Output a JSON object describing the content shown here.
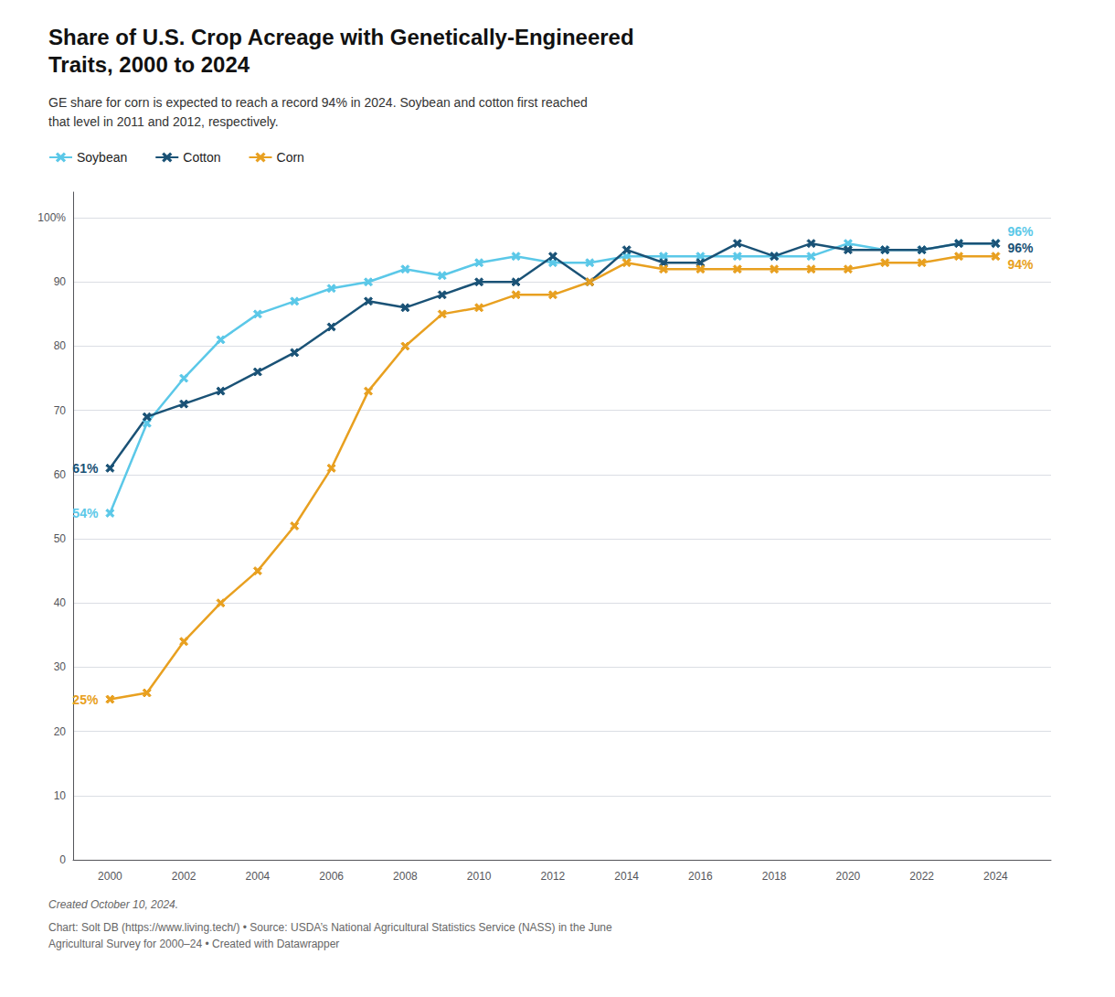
{
  "chart_data": {
    "type": "line",
    "title": "Share of U.S. Crop Acreage with Genetically-Engineered\nTraits, 2000 to 2024",
    "subtitle": "GE share for corn is expected to reach a record 94% in 2024. Soybean and cotton first reached\nthat level in 2011 and 2012, respectively.",
    "caption": "Created October 10, 2024.",
    "source": "Chart: Solt DB (https://www.living.tech/) • Source: USDA’s National Agricultural Statistics Service (NASS) in the June\nAgricultural Survey for 2000–24 • Created with Datawrapper",
    "x": [
      2000,
      2001,
      2002,
      2003,
      2004,
      2005,
      2006,
      2007,
      2008,
      2009,
      2010,
      2011,
      2012,
      2013,
      2014,
      2015,
      2016,
      2017,
      2018,
      2019,
      2020,
      2021,
      2022,
      2023,
      2024
    ],
    "series": [
      {
        "name": "Soybean",
        "color": "#5bc8e8",
        "values": [
          54,
          68,
          75,
          81,
          85,
          87,
          89,
          90,
          92,
          91,
          93,
          94,
          93,
          93,
          94,
          94,
          94,
          94,
          94,
          94,
          96,
          95,
          95,
          96,
          96
        ]
      },
      {
        "name": "Cotton",
        "color": "#1a5276",
        "values": [
          61,
          69,
          71,
          73,
          76,
          79,
          83,
          87,
          86,
          88,
          90,
          90,
          94,
          90,
          95,
          93,
          93,
          96,
          94,
          96,
          95,
          95,
          95,
          96,
          96
        ]
      },
      {
        "name": "Corn",
        "color": "#e8a020",
        "values": [
          25,
          26,
          34,
          40,
          45,
          52,
          61,
          73,
          80,
          85,
          86,
          88,
          88,
          90,
          93,
          92,
          92,
          92,
          92,
          92,
          92,
          93,
          93,
          94,
          94
        ]
      }
    ],
    "annotations": [
      {
        "text": "61%",
        "series": "Cotton",
        "x": 2000,
        "y": 61
      },
      {
        "text": "54%",
        "series": "Soybean",
        "x": 2000,
        "y": 54
      },
      {
        "text": "25%",
        "series": "Corn",
        "x": 2000,
        "y": 25
      },
      {
        "text": "96%",
        "series": "Soybean",
        "x": 2024,
        "y": 96
      },
      {
        "text": "96%",
        "series": "Cotton",
        "x": 2024,
        "y": 96
      },
      {
        "text": "94%",
        "series": "Corn",
        "x": 2024,
        "y": 94
      }
    ],
    "xlim": [
      1999.0,
      2025.5
    ],
    "xticks": [
      2000,
      2002,
      2004,
      2006,
      2008,
      2010,
      2012,
      2014,
      2016,
      2018,
      2020,
      2022,
      2024
    ],
    "ylim": [
      0,
      104
    ],
    "yticks": [
      0,
      10,
      20,
      30,
      40,
      50,
      60,
      70,
      80,
      90,
      {
        "value": 100,
        "label": "100%"
      }
    ],
    "grid": true,
    "legend": "upper left",
    "marker": "x"
  }
}
